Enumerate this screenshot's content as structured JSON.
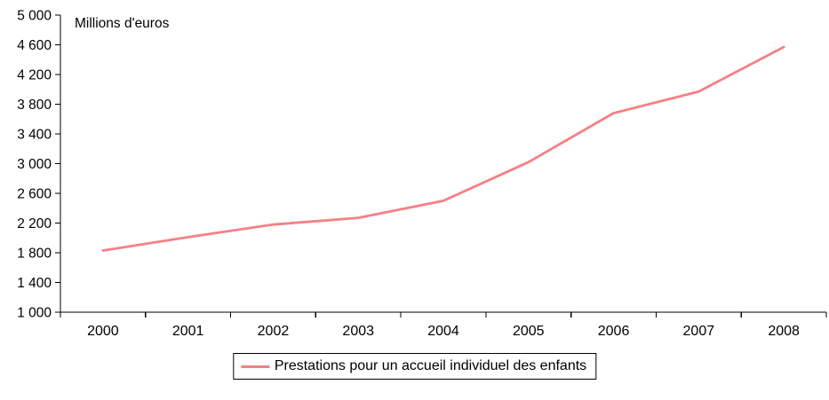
{
  "axis_title": "Millions d'euros",
  "chart_data": {
    "type": "line",
    "title": "Millions d'euros",
    "categories": [
      "2000",
      "2001",
      "2002",
      "2003",
      "2004",
      "2005",
      "2006",
      "2007",
      "2008"
    ],
    "series": [
      {
        "name": "Prestations pour un accueil individuel des enfants",
        "color": "#f58085",
        "values": [
          1830,
          2010,
          2180,
          2270,
          2500,
          3020,
          3680,
          3970,
          4570
        ]
      }
    ],
    "xlabel": "",
    "ylabel": "Millions d'euros",
    "ylim": [
      1000,
      5000
    ],
    "ytick_step": 400,
    "ytick_labels": [
      "1 000",
      "1 400",
      "1 800",
      "2 200",
      "2 600",
      "3 000",
      "3 400",
      "3 800",
      "4 200",
      "4 600",
      "5 000"
    ],
    "grid": false,
    "legend_position": "bottom"
  }
}
